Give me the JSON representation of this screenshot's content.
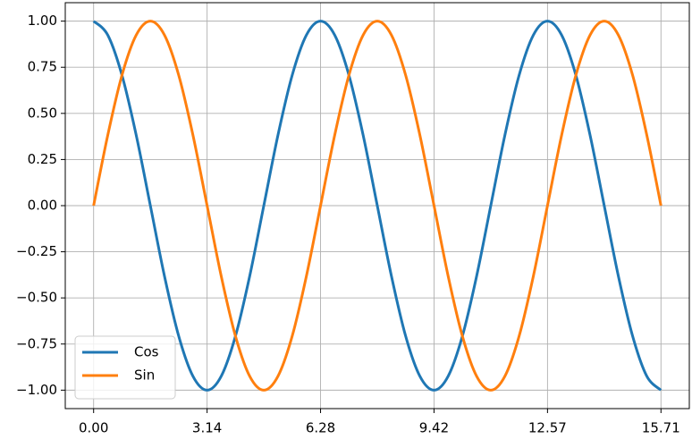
{
  "chart_data": {
    "type": "line",
    "x": [
      0,
      0.393,
      0.785,
      1.178,
      1.571,
      1.963,
      2.356,
      2.749,
      3.142,
      3.534,
      3.927,
      4.32,
      4.712,
      5.105,
      5.498,
      5.89,
      6.283,
      6.676,
      7.069,
      7.461,
      7.854,
      8.247,
      8.639,
      9.032,
      9.425,
      9.817,
      10.21,
      10.603,
      10.996,
      11.388,
      11.781,
      12.174,
      12.566,
      12.959,
      13.352,
      13.744,
      14.137,
      14.53,
      14.923,
      15.315,
      15.708
    ],
    "series": [
      {
        "name": "Cos",
        "color": "#1f77b4",
        "values": [
          1,
          0.924,
          0.707,
          0.383,
          0,
          -0.383,
          -0.707,
          -0.924,
          -1,
          -0.924,
          -0.707,
          -0.383,
          0,
          0.383,
          0.707,
          0.924,
          1,
          0.924,
          0.707,
          0.383,
          0,
          -0.383,
          -0.707,
          -0.924,
          -1,
          -0.924,
          -0.707,
          -0.383,
          0,
          0.383,
          0.707,
          0.924,
          1,
          0.924,
          0.707,
          0.383,
          0,
          -0.383,
          -0.707,
          -0.924,
          -1
        ]
      },
      {
        "name": "Sin",
        "color": "#ff7f0e",
        "values": [
          0,
          0.383,
          0.707,
          0.924,
          1,
          0.924,
          0.707,
          0.383,
          0,
          -0.383,
          -0.707,
          -0.924,
          -1,
          -0.924,
          -0.707,
          -0.383,
          0,
          0.383,
          0.707,
          0.924,
          1,
          0.924,
          0.707,
          0.383,
          0,
          -0.383,
          -0.707,
          -0.924,
          -1,
          -0.924,
          -0.707,
          -0.383,
          0,
          0.383,
          0.707,
          0.924,
          1,
          0.924,
          0.707,
          0.383,
          0
        ]
      }
    ],
    "xlim": [
      -0.785,
      16.493
    ],
    "ylim": [
      -1.1,
      1.1
    ],
    "xticks": [
      {
        "value": 0,
        "label": "0.00"
      },
      {
        "value": 3.1416,
        "label": "3.14"
      },
      {
        "value": 6.2832,
        "label": "6.28"
      },
      {
        "value": 9.4248,
        "label": "9.42"
      },
      {
        "value": 12.5664,
        "label": "12.57"
      },
      {
        "value": 15.708,
        "label": "15.71"
      }
    ],
    "yticks": [
      {
        "value": -1,
        "label": "−1.00"
      },
      {
        "value": -0.75,
        "label": "−0.75"
      },
      {
        "value": -0.5,
        "label": "−0.50"
      },
      {
        "value": -0.25,
        "label": "−0.25"
      },
      {
        "value": 0,
        "label": "0.00"
      },
      {
        "value": 0.25,
        "label": "0.25"
      },
      {
        "value": 0.5,
        "label": "0.50"
      },
      {
        "value": 0.75,
        "label": "0.75"
      },
      {
        "value": 1,
        "label": "1.00"
      }
    ],
    "grid": true,
    "legend": "lower left"
  }
}
